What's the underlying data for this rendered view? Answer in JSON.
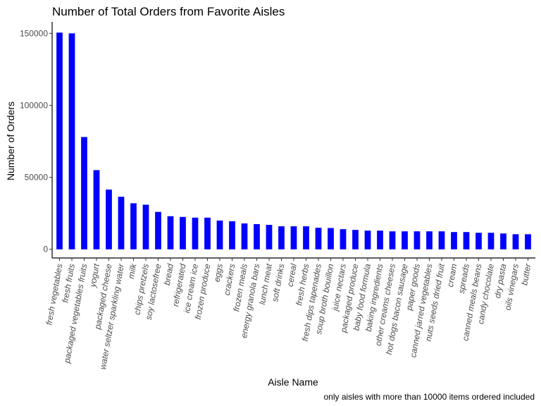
{
  "chart_data": {
    "type": "bar",
    "title": "Number of Total Orders from Favorite Aisles",
    "xlabel": "Aisle Name",
    "ylabel": "Number of Orders",
    "caption": "only aisles with more than 10000 items ordered included",
    "ylim": [
      -6000,
      157000
    ],
    "yticks": [
      0,
      50000,
      100000,
      150000
    ],
    "ytick_labels": [
      "0",
      "50000",
      "100000",
      "150000"
    ],
    "bar_color": "#0000ff",
    "grid": false,
    "legend": "none",
    "categories": [
      "fresh vegetables",
      "fresh fruits",
      "packaged vegetables fruits",
      "yogurt",
      "packaged cheese",
      "water seltzer sparkling water",
      "milk",
      "chips pretzels",
      "soy lactosefree",
      "bread",
      "refrigerated",
      "ice cream ice",
      "frozen produce",
      "eggs",
      "crackers",
      "frozen meals",
      "energy granola bars",
      "lunch meat",
      "soft drinks",
      "cereal",
      "fresh herbs",
      "fresh dips tapenades",
      "soup broth bouillon",
      "juice nectars",
      "packaged produce",
      "baby food formula",
      "baking ingredients",
      "other creams cheeses",
      "hot dogs bacon sausage",
      "paper goods",
      "canned jarred vegetables",
      "nuts seeds dried fruit",
      "cream",
      "spreads",
      "canned meals beans",
      "candy chocolate",
      "dry pasta",
      "oils vinegars",
      "butter"
    ],
    "values": [
      150500,
      150000,
      78000,
      55000,
      41500,
      36500,
      32000,
      31000,
      26000,
      23000,
      22500,
      22000,
      22000,
      20000,
      19500,
      18000,
      17500,
      17000,
      16000,
      16000,
      16000,
      15000,
      14800,
      14000,
      13500,
      13000,
      13000,
      12500,
      12500,
      12500,
      12500,
      12500,
      12000,
      12000,
      11500,
      11500,
      11000,
      10500,
      10500
    ]
  }
}
